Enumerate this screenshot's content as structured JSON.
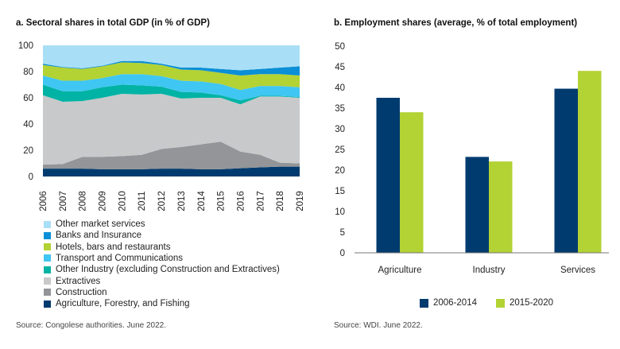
{
  "chart_data": [
    {
      "type": "area",
      "stacked": true,
      "title": "a. Sectoral shares in total GDP (in % of GDP)",
      "xlabel": "",
      "ylabel": "",
      "ylim": [
        0,
        100
      ],
      "yticks": [
        "0",
        "20",
        "40",
        "60",
        "80",
        "100"
      ],
      "x": [
        "2006",
        "2007",
        "2008",
        "2009",
        "2010",
        "2011",
        "2012",
        "2013",
        "2014",
        "2015",
        "2016",
        "2017",
        "2018",
        "2019"
      ],
      "legend_position": "bottom",
      "series": [
        {
          "name": "Agriculture, Forestry, and Fishing",
          "color": "#003b6f",
          "values": [
            6,
            6,
            6,
            5.5,
            5.5,
            5.5,
            6,
            6,
            5.5,
            5.5,
            6.3,
            7,
            7.5,
            7.5
          ]
        },
        {
          "name": "Construction",
          "color": "#939598",
          "values": [
            3,
            3.5,
            9,
            9.5,
            10,
            11,
            15,
            16.5,
            19,
            21,
            12.7,
            9.5,
            3,
            2.5
          ]
        },
        {
          "name": "Extractives",
          "color": "#c8c9cb",
          "values": [
            53,
            47.5,
            42.5,
            45,
            47.5,
            46,
            42,
            37,
            35.5,
            33.5,
            36,
            44.5,
            50.5,
            50
          ]
        },
        {
          "name": "Other Industry (excluding Construction and Extractives)",
          "color": "#00b3a4",
          "values": [
            8,
            8,
            7.5,
            8,
            7,
            7,
            5.5,
            5,
            4,
            2,
            3,
            0.5,
            0.5,
            0.5
          ]
        },
        {
          "name": "Transport and Communications",
          "color": "#40c6f2",
          "values": [
            7,
            8,
            8,
            7,
            8,
            8.5,
            8,
            8.5,
            8.5,
            8.5,
            8,
            7.5,
            7.5,
            7.5
          ]
        },
        {
          "name": "Hotels, bars and restaurants",
          "color": "#b3d234",
          "values": [
            8,
            10,
            9,
            9,
            9,
            8.5,
            8.5,
            8.5,
            8.5,
            8.5,
            11,
            9,
            9,
            9
          ]
        },
        {
          "name": "Banks and Insurance",
          "color": "#0b8fd6",
          "values": [
            1,
            0.5,
            0.5,
            0.5,
            1,
            1.5,
            1,
            1.5,
            2,
            3,
            4,
            4,
            5,
            7
          ]
        },
        {
          "name": "Other market services",
          "color": "#a9dff6",
          "values": [
            14,
            16.5,
            17.5,
            15.5,
            12,
            12,
            14,
            17,
            17,
            18,
            19,
            18,
            17,
            16
          ]
        }
      ],
      "source": "Source: Congolese authorities. June 2022."
    },
    {
      "type": "bar",
      "title": "b. Employment shares (average, % of total employment)",
      "xlabel": "",
      "ylabel": "",
      "ylim": [
        0,
        50
      ],
      "yticks": [
        "0",
        "5",
        "10",
        "15",
        "20",
        "25",
        "30",
        "35",
        "40",
        "45",
        "50"
      ],
      "categories": [
        "Agriculture",
        "Industry",
        "Services"
      ],
      "legend_position": "bottom",
      "series": [
        {
          "name": "2006-2014",
          "color": "#003b6f",
          "values": [
            37.5,
            23.2,
            39.7
          ]
        },
        {
          "name": "2015-2020",
          "color": "#b3d234",
          "values": [
            34,
            22.1,
            44
          ]
        }
      ],
      "source": "Source: WDI. June 2022."
    }
  ]
}
